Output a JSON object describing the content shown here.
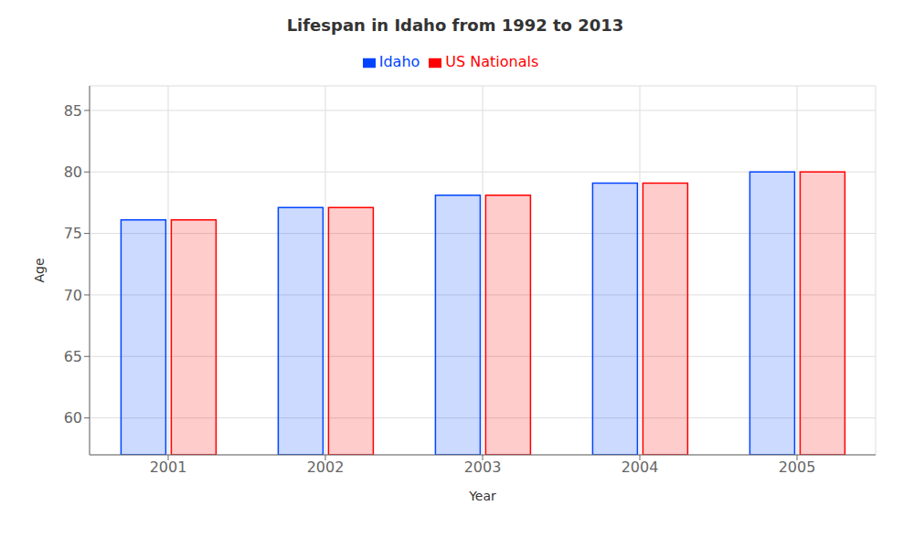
{
  "chart_data": {
    "type": "bar",
    "title": "Lifespan in Idaho from 1992 to 2013",
    "x_label": "Year",
    "y_label": "Age",
    "categories": [
      "2001",
      "2002",
      "2003",
      "2004",
      "2005"
    ],
    "series": [
      {
        "name": "Idaho",
        "color": "#0044ff",
        "values": [
          76.1,
          77.1,
          78.1,
          79.1,
          80.0
        ]
      },
      {
        "name": "US Nationals",
        "color": "#ff0000",
        "values": [
          76.1,
          77.1,
          78.1,
          79.1,
          80.0
        ]
      }
    ],
    "ylim": [
      57,
      87
    ],
    "yticks": [
      60,
      65,
      70,
      75,
      80,
      85
    ],
    "grid": true,
    "legend": "top"
  }
}
